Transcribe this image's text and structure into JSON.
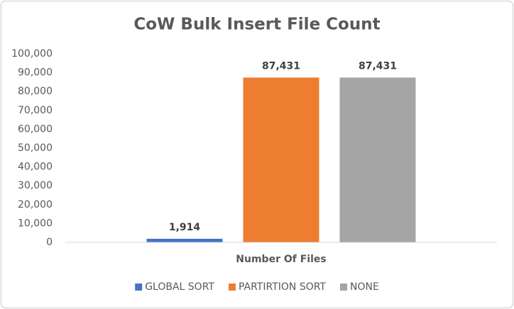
{
  "chart_data": {
    "type": "bar",
    "title": "CoW Bulk Insert File Count",
    "categories": [
      "Number Of Files"
    ],
    "series": [
      {
        "name": "GLOBAL SORT",
        "color": "#4472c4",
        "values": [
          1914
        ],
        "value_labels": [
          "1,914"
        ]
      },
      {
        "name": "PARTIRTION SORT",
        "color": "#ed7d31",
        "values": [
          87431
        ],
        "value_labels": [
          "87,431"
        ]
      },
      {
        "name": "NONE",
        "color": "#a5a5a5",
        "values": [
          87431
        ],
        "value_labels": [
          "87,431"
        ]
      }
    ],
    "ylim": [
      0,
      100000
    ],
    "yticks": [
      0,
      {
        "value": 10000,
        "label": "10,000"
      },
      {
        "value": 20000,
        "label": "20,000"
      },
      {
        "value": 30000,
        "label": "30,000"
      },
      {
        "value": 40000,
        "label": "40,000"
      },
      {
        "value": 50000,
        "label": "50,000"
      },
      {
        "value": 60000,
        "label": "60,000"
      },
      {
        "value": 70000,
        "label": "70,000"
      },
      {
        "value": 80000,
        "label": "80,000"
      },
      {
        "value": 90000,
        "label": "90,000"
      },
      {
        "value": 100000,
        "label": "100,000"
      }
    ],
    "grid": false,
    "legend": "bottom"
  }
}
